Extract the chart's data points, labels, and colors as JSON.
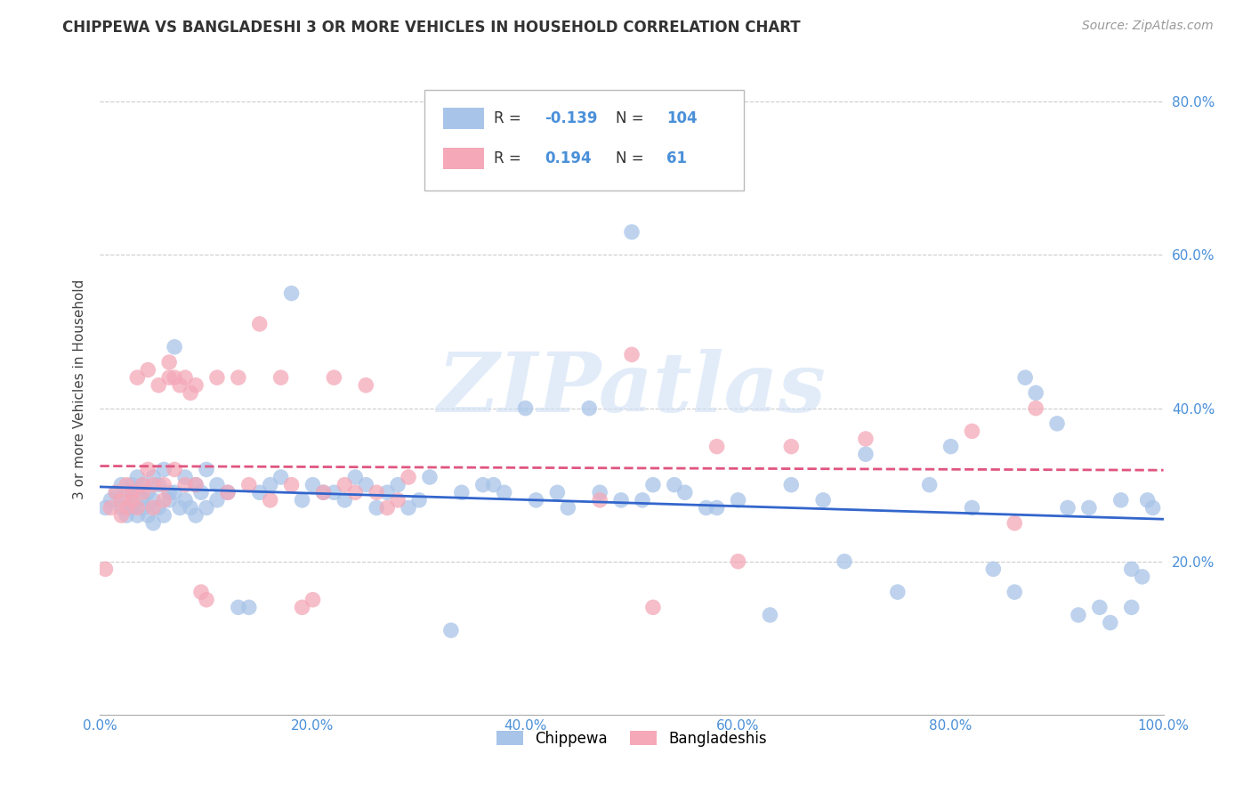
{
  "title": "CHIPPEWA VS BANGLADESHI 3 OR MORE VEHICLES IN HOUSEHOLD CORRELATION CHART",
  "source": "Source: ZipAtlas.com",
  "ylabel": "3 or more Vehicles in Household",
  "xlim": [
    0.0,
    1.0
  ],
  "ylim": [
    0.0,
    0.85
  ],
  "yticks": [
    0.2,
    0.4,
    0.6,
    0.8
  ],
  "xticks": [
    0.0,
    0.2,
    0.4,
    0.6,
    0.8,
    1.0
  ],
  "xtick_labels": [
    "0.0%",
    "20.0%",
    "40.0%",
    "60.0%",
    "80.0%",
    "100.0%"
  ],
  "right_ytick_labels": [
    "20.0%",
    "40.0%",
    "60.0%",
    "80.0%"
  ],
  "chippewa_color": "#a8c4e8",
  "bangladeshi_color": "#f4a8b8",
  "chippewa_line_color": "#3366cc",
  "bangladeshi_line_color": "#e05580",
  "chippewa_R": -0.139,
  "chippewa_N": 104,
  "bangladeshi_R": 0.194,
  "bangladeshi_N": 61,
  "watermark": "ZIPatlas",
  "label_color": "#4a90d9",
  "chippewa_x": [
    0.005,
    0.01,
    0.015,
    0.02,
    0.02,
    0.025,
    0.025,
    0.03,
    0.03,
    0.03,
    0.035,
    0.035,
    0.04,
    0.04,
    0.04,
    0.045,
    0.045,
    0.05,
    0.05,
    0.05,
    0.055,
    0.055,
    0.06,
    0.06,
    0.065,
    0.065,
    0.07,
    0.07,
    0.075,
    0.08,
    0.08,
    0.085,
    0.09,
    0.09,
    0.095,
    0.1,
    0.1,
    0.11,
    0.11,
    0.12,
    0.13,
    0.14,
    0.15,
    0.16,
    0.17,
    0.18,
    0.19,
    0.2,
    0.22,
    0.24,
    0.26,
    0.28,
    0.3,
    0.33,
    0.36,
    0.38,
    0.4,
    0.43,
    0.46,
    0.49,
    0.5,
    0.52,
    0.55,
    0.58,
    0.6,
    0.63,
    0.65,
    0.68,
    0.7,
    0.72,
    0.75,
    0.78,
    0.8,
    0.82,
    0.84,
    0.86,
    0.87,
    0.88,
    0.9,
    0.91,
    0.92,
    0.93,
    0.94,
    0.95,
    0.96,
    0.97,
    0.97,
    0.98,
    0.985,
    0.99,
    0.21,
    0.23,
    0.25,
    0.27,
    0.29,
    0.31,
    0.34,
    0.37,
    0.41,
    0.44,
    0.47,
    0.51,
    0.54,
    0.57
  ],
  "chippewa_y": [
    0.27,
    0.28,
    0.29,
    0.3,
    0.27,
    0.28,
    0.26,
    0.29,
    0.27,
    0.3,
    0.31,
    0.26,
    0.28,
    0.3,
    0.27,
    0.29,
    0.26,
    0.28,
    0.31,
    0.25,
    0.3,
    0.27,
    0.32,
    0.26,
    0.29,
    0.28,
    0.48,
    0.29,
    0.27,
    0.31,
    0.28,
    0.27,
    0.3,
    0.26,
    0.29,
    0.32,
    0.27,
    0.28,
    0.3,
    0.29,
    0.14,
    0.14,
    0.29,
    0.3,
    0.31,
    0.55,
    0.28,
    0.3,
    0.29,
    0.31,
    0.27,
    0.3,
    0.28,
    0.11,
    0.3,
    0.29,
    0.4,
    0.29,
    0.4,
    0.28,
    0.63,
    0.3,
    0.29,
    0.27,
    0.28,
    0.13,
    0.3,
    0.28,
    0.2,
    0.34,
    0.16,
    0.3,
    0.35,
    0.27,
    0.19,
    0.16,
    0.44,
    0.42,
    0.38,
    0.27,
    0.13,
    0.27,
    0.14,
    0.12,
    0.28,
    0.19,
    0.14,
    0.18,
    0.28,
    0.27,
    0.29,
    0.28,
    0.3,
    0.29,
    0.27,
    0.31,
    0.29,
    0.3,
    0.28,
    0.27,
    0.29,
    0.28,
    0.3,
    0.27
  ],
  "bangladeshi_x": [
    0.005,
    0.01,
    0.015,
    0.02,
    0.02,
    0.025,
    0.025,
    0.03,
    0.03,
    0.035,
    0.035,
    0.04,
    0.04,
    0.045,
    0.045,
    0.05,
    0.05,
    0.055,
    0.06,
    0.06,
    0.065,
    0.065,
    0.07,
    0.07,
    0.075,
    0.08,
    0.08,
    0.085,
    0.09,
    0.09,
    0.095,
    0.1,
    0.11,
    0.12,
    0.13,
    0.14,
    0.15,
    0.16,
    0.17,
    0.18,
    0.19,
    0.2,
    0.21,
    0.22,
    0.23,
    0.24,
    0.25,
    0.26,
    0.27,
    0.28,
    0.29,
    0.47,
    0.52,
    0.58,
    0.6,
    0.65,
    0.72,
    0.82,
    0.86,
    0.88,
    0.5
  ],
  "bangladeshi_y": [
    0.19,
    0.27,
    0.29,
    0.28,
    0.26,
    0.3,
    0.27,
    0.29,
    0.28,
    0.44,
    0.27,
    0.29,
    0.3,
    0.45,
    0.32,
    0.27,
    0.3,
    0.43,
    0.28,
    0.3,
    0.44,
    0.46,
    0.44,
    0.32,
    0.43,
    0.44,
    0.3,
    0.42,
    0.43,
    0.3,
    0.16,
    0.15,
    0.44,
    0.29,
    0.44,
    0.3,
    0.51,
    0.28,
    0.44,
    0.3,
    0.14,
    0.15,
    0.29,
    0.44,
    0.3,
    0.29,
    0.43,
    0.29,
    0.27,
    0.28,
    0.31,
    0.28,
    0.14,
    0.35,
    0.2,
    0.35,
    0.36,
    0.37,
    0.25,
    0.4,
    0.47
  ]
}
